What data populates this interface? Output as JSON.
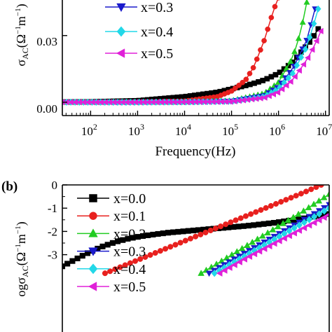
{
  "chart_data": [
    {
      "panel": "a",
      "type": "line",
      "x_scale": "log",
      "xlim": [
        25,
        12000000
      ],
      "ylim": [
        -0.006,
        0.046
      ],
      "xlabel": "Frequency(Hz)",
      "ylabel": "σAC(Ω⁻¹m⁻¹)",
      "ylabel_parts": {
        "base": "σ",
        "sub": "AC",
        "unit": "(Ω",
        "exp1": "−1",
        "mid": "m",
        "exp2": "−1",
        "close": ")"
      },
      "x_ticks": [
        100,
        1000,
        10000,
        100000,
        1000000,
        10000000
      ],
      "x_tick_labels": [
        {
          "base": "10",
          "exp": "2"
        },
        {
          "base": "10",
          "exp": "3"
        },
        {
          "base": "10",
          "exp": "4"
        },
        {
          "base": "10",
          "exp": "5"
        },
        {
          "base": "10",
          "exp": "6"
        },
        {
          "base": "10",
          "exp": "7"
        }
      ],
      "y_ticks": [
        0.0,
        0.03
      ],
      "y_tick_labels": [
        "0.00",
        "0.03"
      ],
      "legend": {
        "placement": "top-right",
        "labels": [
          "x=0.3",
          "x=0.4",
          "x=0.5"
        ]
      },
      "series": [
        {
          "name": "x=0.0",
          "color": "#000000",
          "marker": "square",
          "x": [
            25,
            100,
            1000,
            10000,
            50000,
            100000,
            200000,
            300000,
            500000,
            1000000,
            2000000,
            5000000,
            7000000
          ],
          "y": [
            0.0001,
            0.0002,
            0.0007,
            0.0025,
            0.0045,
            0.006,
            0.0075,
            0.0085,
            0.01,
            0.013,
            0.018,
            0.028,
            0.033
          ]
        },
        {
          "name": "x=0.1",
          "color": "#e8201e",
          "marker": "circle",
          "x": [
            25,
            100,
            1000,
            10000,
            50000,
            100000,
            200000,
            300000,
            500000,
            700000,
            900000,
            1000000
          ],
          "y": [
            0.0,
            0.0,
            0.0001,
            0.0005,
            0.0025,
            0.005,
            0.01,
            0.016,
            0.028,
            0.038,
            0.045,
            0.047
          ]
        },
        {
          "name": "x=0.2",
          "color": "#22cc22",
          "marker": "triangle-up",
          "x": [
            25,
            100,
            1000,
            10000,
            100000,
            500000,
            1000000,
            2000000,
            3000000,
            4000000
          ],
          "y": [
            0.0,
            0.0,
            0.0,
            0.0001,
            0.0007,
            0.004,
            0.009,
            0.02,
            0.032,
            0.045
          ]
        },
        {
          "name": "x=0.3",
          "color": "#1a1acc",
          "marker": "triangle-down",
          "x": [
            25,
            100,
            1000,
            10000,
            100000,
            500000,
            1000000,
            2000000,
            4000000,
            6000000
          ],
          "y": [
            0.0,
            0.0,
            0.0,
            0.0001,
            0.0005,
            0.003,
            0.007,
            0.015,
            0.028,
            0.042
          ]
        },
        {
          "name": "x=0.4",
          "color": "#22d8e8",
          "marker": "diamond",
          "x": [
            25,
            100,
            1000,
            10000,
            100000,
            500000,
            1000000,
            2000000,
            4000000,
            6000000,
            7000000
          ],
          "y": [
            0.0,
            0.0,
            0.0,
            0.0001,
            0.0004,
            0.0025,
            0.006,
            0.013,
            0.025,
            0.037,
            0.042
          ]
        },
        {
          "name": "x=0.5",
          "color": "#e020d8",
          "marker": "triangle-left",
          "x": [
            25,
            100,
            1000,
            10000,
            100000,
            500000,
            1000000,
            2000000,
            4000000,
            6000000,
            8000000
          ],
          "y": [
            0.0,
            0.0,
            0.0,
            0.0001,
            0.0003,
            0.002,
            0.0045,
            0.01,
            0.019,
            0.026,
            0.032
          ]
        }
      ]
    },
    {
      "panel": "b",
      "type": "line",
      "panel_label": "(b)",
      "xlim": [
        0,
        100
      ],
      "ylim": [
        -3.8,
        0.2
      ],
      "ylabel": "logσAC(Ω⁻¹m⁻¹)",
      "ylabel_parts": {
        "base": "ogσ",
        "sub": "AC",
        "unit": "(Ω",
        "exp1": "−1",
        "mid": "m",
        "exp2": "−1",
        "close": ")"
      },
      "y_ticks": [
        0,
        -1,
        -2,
        -3
      ],
      "y_tick_labels": [
        "0",
        "-1",
        "-2",
        "-3"
      ],
      "legend": {
        "placement": "top-left",
        "labels": [
          "x=0.0",
          "x=0.1",
          "x=0.2",
          "x=0.3",
          "x=0.4",
          "x=0.5"
        ]
      },
      "series": [
        {
          "name": "x=0.0",
          "color": "#000000",
          "marker": "square",
          "x": [
            0,
            5,
            10,
            15,
            20,
            25,
            30,
            35,
            40,
            50,
            60,
            70,
            80,
            90,
            95,
            100
          ],
          "y": [
            -3.5,
            -3.2,
            -2.9,
            -2.65,
            -2.45,
            -2.3,
            -2.2,
            -2.12,
            -2.05,
            -1.95,
            -1.85,
            -1.75,
            -1.62,
            -1.45,
            -1.35,
            -1.25
          ]
        },
        {
          "name": "x=0.1",
          "color": "#e8201e",
          "marker": "circle",
          "x": [
            16,
            30,
            45,
            60,
            75,
            90,
            97
          ],
          "y": [
            -3.8,
            -3.15,
            -2.45,
            -1.75,
            -1.05,
            -0.35,
            0.0
          ]
        },
        {
          "name": "x=0.2",
          "color": "#22cc22",
          "marker": "triangle-up",
          "x": [
            52,
            60,
            70,
            80,
            90,
            100
          ],
          "y": [
            -3.8,
            -3.25,
            -2.55,
            -1.85,
            -1.15,
            -0.4
          ]
        },
        {
          "name": "x=0.3",
          "color": "#1a1acc",
          "marker": "triangle-down",
          "x": [
            55,
            65,
            75,
            85,
            95,
            100
          ],
          "y": [
            -3.8,
            -3.15,
            -2.5,
            -1.85,
            -1.2,
            -0.85
          ]
        },
        {
          "name": "x=0.4",
          "color": "#22d8e8",
          "marker": "diamond",
          "x": [
            57,
            67,
            77,
            87,
            97,
            100
          ],
          "y": [
            -3.8,
            -3.15,
            -2.5,
            -1.85,
            -1.2,
            -1.0
          ]
        },
        {
          "name": "x=0.5",
          "color": "#e020d8",
          "marker": "triangle-left",
          "x": [
            59,
            69,
            79,
            89,
            99,
            100
          ],
          "y": [
            -3.8,
            -3.15,
            -2.55,
            -1.95,
            -1.35,
            -1.28
          ]
        }
      ]
    }
  ]
}
